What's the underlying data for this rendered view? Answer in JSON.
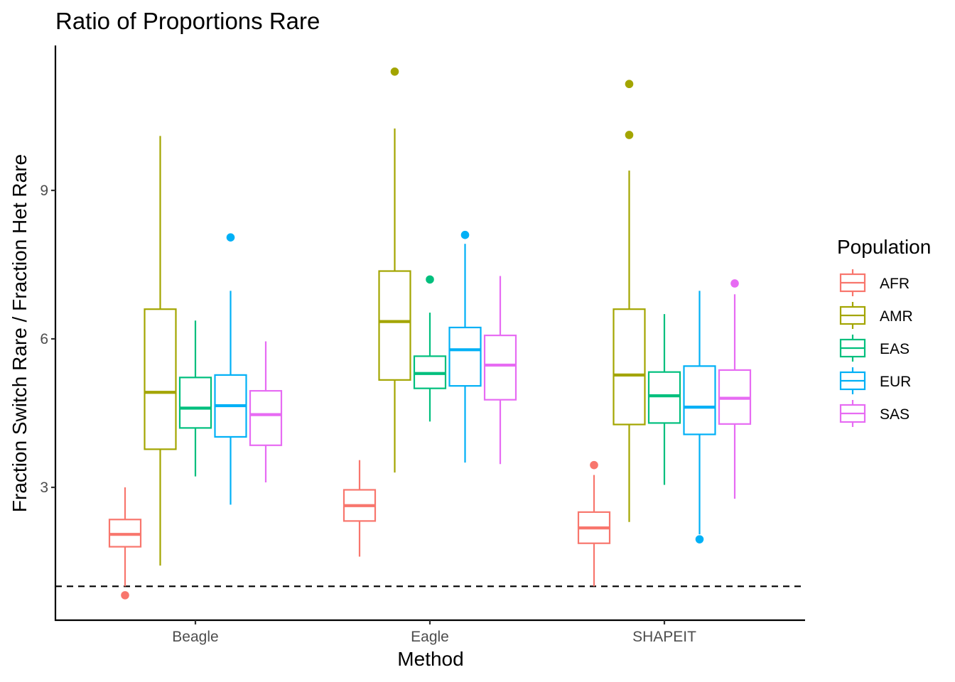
{
  "chart_data": {
    "type": "box",
    "title": "Ratio of Proportions Rare",
    "xlabel": "Method",
    "ylabel": "Fraction Switch Rare / Fraction Het Rare",
    "categories": [
      "Beagle",
      "Eagle",
      "SHAPEIT"
    ],
    "ylim": [
      0.1,
      11.7
    ],
    "yticks": [
      3,
      6,
      9
    ],
    "reference_line": {
      "y": 1.0,
      "style": "dashed",
      "color": "#000000"
    },
    "grid": false,
    "legend": {
      "title": "Population",
      "position": "right"
    },
    "series": [
      {
        "name": "AFR",
        "color": "#F8766D",
        "boxes": [
          {
            "category": "Beagle",
            "lower_whisker": 1.0,
            "q1": 1.8,
            "median": 2.05,
            "q3": 2.35,
            "upper_whisker": 3.0,
            "outliers": [
              0.82
            ]
          },
          {
            "category": "Eagle",
            "lower_whisker": 1.6,
            "q1": 2.32,
            "median": 2.63,
            "q3": 2.95,
            "upper_whisker": 3.55,
            "outliers": []
          },
          {
            "category": "SHAPEIT",
            "lower_whisker": 1.0,
            "q1": 1.87,
            "median": 2.18,
            "q3": 2.5,
            "upper_whisker": 3.25,
            "outliers": [
              3.45
            ]
          }
        ]
      },
      {
        "name": "AMR",
        "color": "#A3A500",
        "boxes": [
          {
            "category": "Beagle",
            "lower_whisker": 1.42,
            "q1": 3.77,
            "median": 4.92,
            "q3": 6.6,
            "upper_whisker": 10.1,
            "outliers": []
          },
          {
            "category": "Eagle",
            "lower_whisker": 3.3,
            "q1": 5.17,
            "median": 6.35,
            "q3": 7.37,
            "upper_whisker": 10.25,
            "outliers": [
              11.4
            ]
          },
          {
            "category": "SHAPEIT",
            "lower_whisker": 2.3,
            "q1": 4.27,
            "median": 5.27,
            "q3": 6.6,
            "upper_whisker": 9.4,
            "outliers": [
              10.12,
              11.15
            ]
          }
        ]
      },
      {
        "name": "EAS",
        "color": "#00BF7D",
        "boxes": [
          {
            "category": "Beagle",
            "lower_whisker": 3.22,
            "q1": 4.2,
            "median": 4.6,
            "q3": 5.22,
            "upper_whisker": 6.37,
            "outliers": []
          },
          {
            "category": "Eagle",
            "lower_whisker": 4.33,
            "q1": 5.0,
            "median": 5.3,
            "q3": 5.65,
            "upper_whisker": 6.53,
            "outliers": [
              7.2
            ]
          },
          {
            "category": "SHAPEIT",
            "lower_whisker": 3.05,
            "q1": 4.3,
            "median": 4.85,
            "q3": 5.33,
            "upper_whisker": 6.5,
            "outliers": []
          }
        ]
      },
      {
        "name": "EUR",
        "color": "#00B0F6",
        "boxes": [
          {
            "category": "Beagle",
            "lower_whisker": 2.65,
            "q1": 4.02,
            "median": 4.65,
            "q3": 5.27,
            "upper_whisker": 6.97,
            "outliers": [
              8.05
            ]
          },
          {
            "category": "Eagle",
            "lower_whisker": 3.5,
            "q1": 5.05,
            "median": 5.78,
            "q3": 6.23,
            "upper_whisker": 7.92,
            "outliers": [
              8.1
            ]
          },
          {
            "category": "SHAPEIT",
            "lower_whisker": 2.05,
            "q1": 4.07,
            "median": 4.62,
            "q3": 5.45,
            "upper_whisker": 6.97,
            "outliers": [
              1.95
            ]
          }
        ]
      },
      {
        "name": "SAS",
        "color": "#E76BF3",
        "boxes": [
          {
            "category": "Beagle",
            "lower_whisker": 3.1,
            "q1": 3.85,
            "median": 4.47,
            "q3": 4.95,
            "upper_whisker": 5.95,
            "outliers": []
          },
          {
            "category": "Eagle",
            "lower_whisker": 3.47,
            "q1": 4.77,
            "median": 5.47,
            "q3": 6.07,
            "upper_whisker": 7.27,
            "outliers": []
          },
          {
            "category": "SHAPEIT",
            "lower_whisker": 2.77,
            "q1": 4.28,
            "median": 4.8,
            "q3": 5.37,
            "upper_whisker": 6.9,
            "outliers": [
              7.12
            ]
          }
        ]
      }
    ]
  }
}
